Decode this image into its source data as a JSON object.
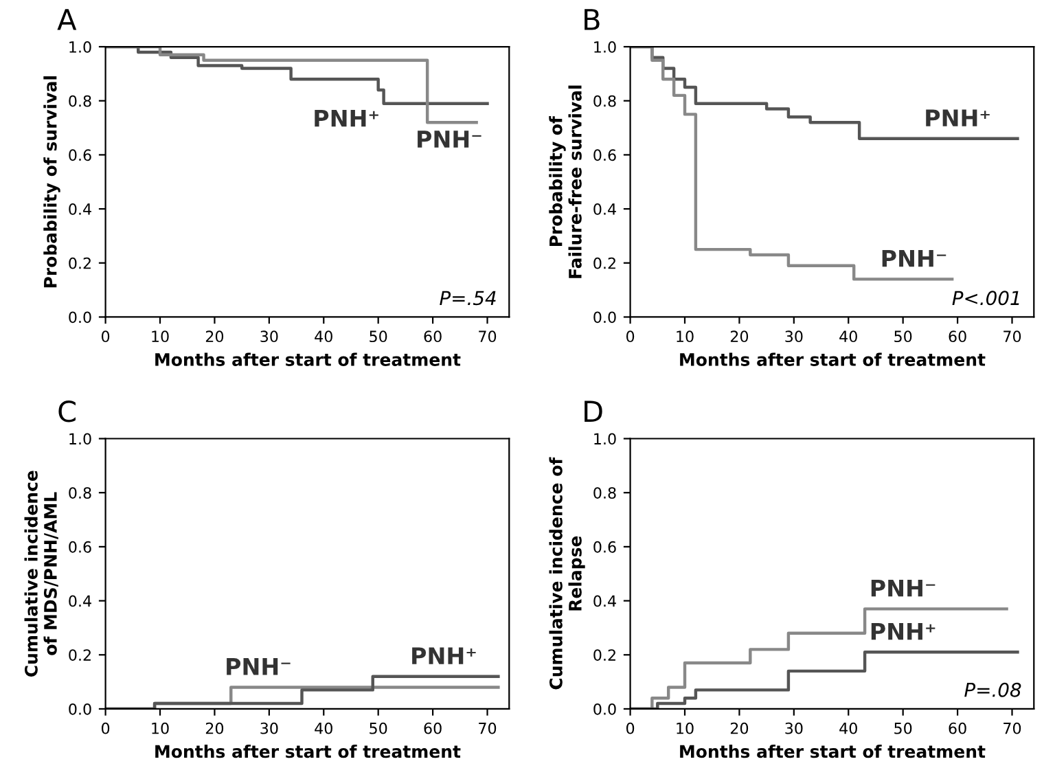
{
  "chart_data": [
    {
      "type": "step",
      "title": "A",
      "xlabel": "Months after start of treatment",
      "ylabel": "Probability of survival",
      "xlim": [
        0,
        74
      ],
      "ylim": [
        0,
        1
      ],
      "xticks": [
        0,
        10,
        20,
        30,
        40,
        50,
        60,
        70
      ],
      "yticks": [
        {
          "value": 0,
          "label": "0.0"
        },
        {
          "value": 0.2,
          "label": "0.2"
        },
        {
          "value": 0.4,
          "label": "0.4"
        },
        {
          "value": 0.6,
          "label": "0.6"
        },
        {
          "value": 0.8,
          "label": "0.8"
        },
        {
          "value": 1,
          "label": "1.0"
        }
      ],
      "series": [
        {
          "color": "#555555",
          "x": [
            0,
            6,
            12,
            17,
            25,
            34,
            50,
            51,
            70
          ],
          "values": [
            1,
            0.98,
            0.96,
            0.93,
            0.92,
            0.88,
            0.84,
            0.79,
            0.79
          ]
        },
        {
          "color": "#888888",
          "x": [
            0,
            10,
            18,
            59,
            68
          ],
          "values": [
            1,
            0.97,
            0.95,
            0.72,
            0.72
          ]
        }
      ],
      "annotations": [
        {
          "text": "PNH⁺",
          "x": 51,
          "y": 0.79
        },
        {
          "text": "PNH⁻",
          "x": 63,
          "y": 0.72
        },
        "P=.54"
      ]
    },
    {
      "type": "step",
      "title": "B",
      "xlabel": "Months after start of treatment",
      "ylabel": "Probability of\nFailure-free survival",
      "xlim": [
        0,
        74
      ],
      "ylim": [
        0,
        1
      ],
      "xticks": [
        0,
        10,
        20,
        30,
        40,
        50,
        60,
        70
      ],
      "yticks": [
        {
          "value": 0,
          "label": "0.0"
        },
        {
          "value": 0.2,
          "label": "0.2"
        },
        {
          "value": 0.4,
          "label": "0.4"
        },
        {
          "value": 0.6,
          "label": "0.6"
        },
        {
          "value": 0.8,
          "label": "0.8"
        },
        {
          "value": 1,
          "label": "1.0"
        }
      ],
      "series": [
        {
          "color": "#555555",
          "x": [
            0,
            4,
            6,
            8,
            10,
            12,
            20,
            25,
            29,
            33,
            40,
            42,
            71
          ],
          "values": [
            1,
            0.96,
            0.92,
            0.88,
            0.85,
            0.79,
            0.79,
            0.77,
            0.74,
            0.72,
            0.72,
            0.66,
            0.66
          ]
        },
        {
          "color": "#888888",
          "x": [
            0,
            4,
            6,
            8,
            10,
            12,
            22,
            29,
            41,
            59
          ],
          "values": [
            1,
            0.95,
            0.88,
            0.82,
            0.75,
            0.25,
            0.23,
            0.19,
            0.14,
            0.14
          ]
        }
      ],
      "annotations": [
        {
          "text": "PNH⁺",
          "x": 60,
          "y": 0.66
        },
        {
          "text": "PNH⁻",
          "x": 52,
          "y": 0.14
        },
        "P<.001"
      ]
    },
    {
      "type": "step",
      "title": "C",
      "xlabel": "Months after start of treatment",
      "ylabel": "Cumulative incidence\nof MDS/PNH/AML",
      "xlim": [
        0,
        74
      ],
      "ylim": [
        0,
        1
      ],
      "xticks": [
        0,
        10,
        20,
        30,
        40,
        50,
        60,
        70
      ],
      "yticks": [
        {
          "value": 0,
          "label": "0.0"
        },
        {
          "value": 0.2,
          "label": "0.2"
        },
        {
          "value": 0.4,
          "label": "0.4"
        },
        {
          "value": 0.6,
          "label": "0.6"
        },
        {
          "value": 0.8,
          "label": "0.8"
        },
        {
          "value": 1,
          "label": "1.0"
        }
      ],
      "series": [
        {
          "color": "#888888",
          "x": [
            0,
            9,
            23,
            72
          ],
          "values": [
            0,
            0.02,
            0.08,
            0.08
          ]
        },
        {
          "color": "#555555",
          "x": [
            0,
            9,
            36,
            49,
            72
          ],
          "values": [
            0,
            0.02,
            0.07,
            0.12,
            0.12
          ]
        }
      ],
      "annotations": [
        {
          "text": "PNH⁻",
          "x": 28,
          "y": 0.08
        },
        {
          "text": "PNH⁺",
          "x": 62,
          "y": 0.12
        }
      ]
    },
    {
      "type": "step",
      "title": "D",
      "xlabel": "Months after start of treatment",
      "ylabel": "Cumulative incidence of\nRelapse",
      "xlim": [
        0,
        74
      ],
      "ylim": [
        0,
        1
      ],
      "xticks": [
        0,
        10,
        20,
        30,
        40,
        50,
        60,
        70
      ],
      "yticks": [
        {
          "value": 0,
          "label": "0.0"
        },
        {
          "value": 0.2,
          "label": "0.2"
        },
        {
          "value": 0.4,
          "label": "0.4"
        },
        {
          "value": 0.6,
          "label": "0.6"
        },
        {
          "value": 0.8,
          "label": "0.8"
        },
        {
          "value": 1,
          "label": "1.0"
        }
      ],
      "series": [
        {
          "color": "#888888",
          "x": [
            0,
            4,
            7,
            10,
            22,
            29,
            43,
            69
          ],
          "values": [
            0,
            0.04,
            0.08,
            0.17,
            0.22,
            0.28,
            0.37,
            0.37
          ]
        },
        {
          "color": "#555555",
          "x": [
            0,
            5,
            10,
            12,
            29,
            43,
            71
          ],
          "values": [
            0,
            0.02,
            0.04,
            0.07,
            0.14,
            0.21,
            0.21
          ]
        }
      ],
      "annotations": [
        {
          "text": "PNH⁻",
          "x": 50,
          "y": 0.37
        },
        {
          "text": "PNH⁺",
          "x": 50,
          "y": 0.21
        },
        "P=.08"
      ]
    }
  ]
}
